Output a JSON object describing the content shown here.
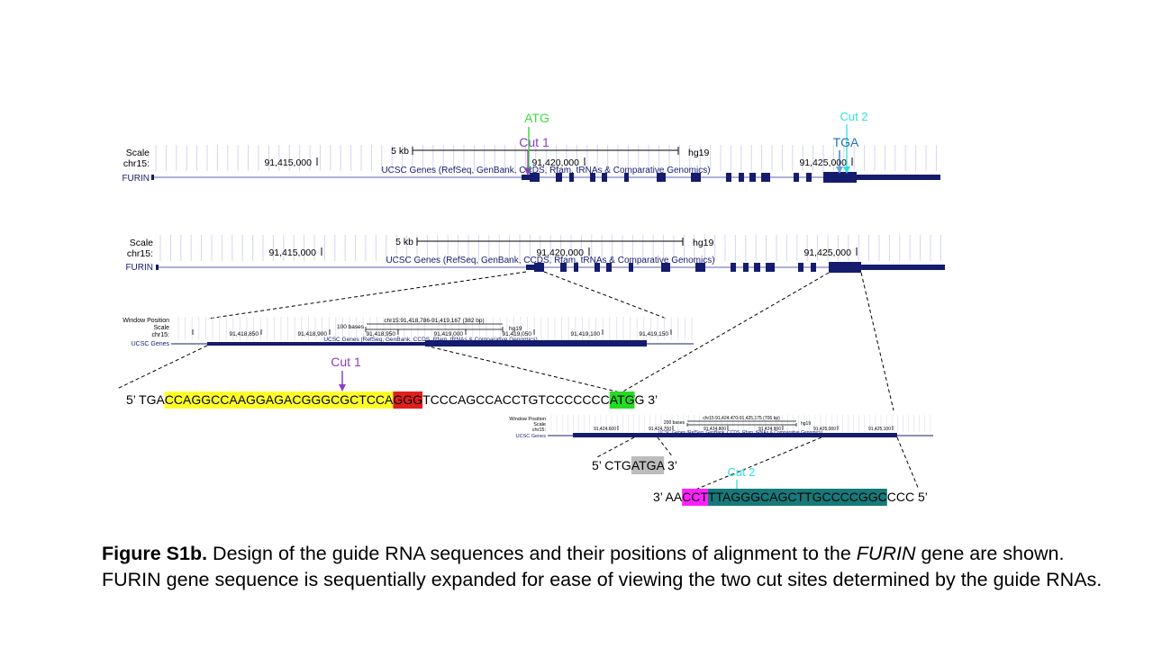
{
  "browser_top": {
    "scale_label": "Scale",
    "chr_label": "chr15:",
    "gene_label": "FURIN",
    "scale_bar": "5 kb",
    "assembly": "hg19",
    "ticks": [
      "91,415,000",
      "91,420,000",
      "91,425,000"
    ],
    "track_title": "UCSC Genes (RefSeq, GenBank, CCDS, Rfam, tRNAs & Comparative Genomics)"
  },
  "markers_top": {
    "atg": "ATG",
    "cut1": "Cut 1",
    "cut2": "Cut 2",
    "tga": "TGA"
  },
  "browser_mid": {
    "scale_label": "Scale",
    "chr_label": "chr15:",
    "gene_label": "FURIN",
    "scale_bar": "5 kb",
    "assembly": "hg19",
    "ticks": [
      "91,415,000",
      "91,420,000",
      "91,425,000"
    ],
    "track_title": "UCSC Genes (RefSeq, GenBank, CCDS, Rfam, tRNAs & Comparative Genomics)"
  },
  "zoom_left": {
    "window_label": "Window Position",
    "scale_label": "Scale",
    "chr_label": "chr15:",
    "gene_label": "UCSC Genes",
    "position": "chr15:91,418,786-91,419,167 (382 bp)",
    "scale_bar": "100 bases",
    "assembly": "hg19",
    "ticks": [
      "91,418,850",
      "91,418,900",
      "91,418,950",
      "91,419,000",
      "91,419,050",
      "91,419,100",
      "91,419,150"
    ],
    "track_title": "UCSC Genes (RefSeq, GenBank, CCDS, Rfam, tRNAs & Comparative Genomics)"
  },
  "zoom_right": {
    "window_label": "Window Position",
    "scale_label": "Scale",
    "chr_label": "chr15:",
    "gene_label": "UCSC Genes",
    "position": "chr15:91,424,470-91,425,175 (706 bp)",
    "scale_bar": "200 bases",
    "assembly": "hg19",
    "ticks": [
      "91,424,600",
      "91,424,700",
      "91,424,800",
      "91,424,900",
      "91,425,000",
      "91,425,100"
    ],
    "track_title": "UCSC Genes (RefSeq, GenBank, CCDS, Rfam, tRNAs & Comparative Genomics)"
  },
  "seq1": {
    "cut_label": "Cut 1",
    "prefix": "5’ TGA",
    "guide": "CCAGGCCAAGGAGACGGGCGCTCCA",
    "pam": "GGG",
    "middle": "TCCCAGCCACCTGTCCCCCCC",
    "start_codon": "ATG",
    "suffix": "G 3’"
  },
  "seq2": {
    "prefix": "5’ CTG",
    "stop_codon": "ATGA",
    "suffix": " 3’"
  },
  "seq3": {
    "cut_label": "Cut 2",
    "prefix": "3’ AA",
    "pam": "CCT",
    "guide": "TTAGGGCAGCTTGCCCCGGC",
    "suffix": "CCC 5’"
  },
  "caption": {
    "bold": "Figure S1b.",
    "text1": " Design of the guide RNA sequences and their positions of alignment to the ",
    "gene": "FURIN",
    "text2": " gene are shown. FURIN gene sequence is sequentially expanded for ease of viewing the two cut sites determined by the guide RNAs."
  },
  "colors": {
    "gene_navy": "#151c6e",
    "atg_green": "#3cdc3c",
    "cut1_purple": "#8a3fc1",
    "cut2_cyan": "#2fe0e0",
    "tga_blue": "#1f6fae",
    "guide_yellow": "#ffff2a",
    "pam_red": "#e0201c",
    "start_green": "#22dd22",
    "stop_gray": "#bcbcbc",
    "pam_magenta": "#ff20ff",
    "guide_teal": "#167a7a"
  }
}
